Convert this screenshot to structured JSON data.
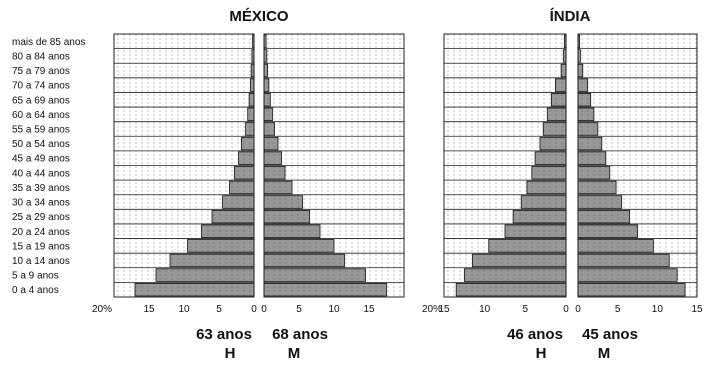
{
  "chart_data": [
    {
      "type": "bar",
      "title": "MÉXICO",
      "orientation": "horizontal-population-pyramid",
      "categories": [
        "0 a 4 anos",
        "5 a 9 anos",
        "10 a 14 anos",
        "15 a 19 anos",
        "20 a 24 anos",
        "25 a 29 anos",
        "30 a 34 anos",
        "35 a 39 anos",
        "40 a 44 anos",
        "45 a 49 anos",
        "50 a 54 anos",
        "55 a 59 anos",
        "60 a 64 anos",
        "65 a 69 anos",
        "70 a 74 anos",
        "75 a 79 anos",
        "80 a 84 anos",
        "mais de 85 anos"
      ],
      "series": [
        {
          "values": [
            17,
            14,
            12,
            9.5,
            7.5,
            6,
            4.5,
            3.5,
            2.8,
            2.2,
            1.8,
            1.2,
            0.9,
            0.7,
            0.5,
            0.4,
            0.3,
            0.2
          ]
        },
        {
          "values": [
            17.5,
            14.5,
            11.5,
            10,
            8,
            6.5,
            5.5,
            4,
            3,
            2.5,
            2,
            1.5,
            1.2,
            0.9,
            0.7,
            0.5,
            0.4,
            0.3
          ]
        }
      ],
      "xlim": [
        0,
        20
      ],
      "left_ticks": [
        "20%",
        "15",
        "10",
        "5",
        "0"
      ],
      "right_ticks": [
        "0",
        "5",
        "10",
        "15"
      ],
      "left_caption": {
        "value": "63 anos",
        "sex": "H"
      },
      "right_caption": {
        "value": "68 anos",
        "sex": "M"
      },
      "grid": true
    },
    {
      "type": "bar",
      "title": "ÍNDIA",
      "orientation": "horizontal-population-pyramid",
      "categories": [
        "0 a 4 anos",
        "5 a 9 anos",
        "10 a 14 anos",
        "15 a 19 anos",
        "20 a 24 anos",
        "25 a 29 anos",
        "30 a 34 anos",
        "35 a 39 anos",
        "40 a 44 anos",
        "45 a 49 anos",
        "50 a 54 anos",
        "55 a 59 anos",
        "60 a 64 anos",
        "65 a 69 anos",
        "70 a 74 anos",
        "75 a 79 anos",
        "80 a 84 anos",
        "mais de 85 anos"
      ],
      "series": [
        {
          "values": [
            13.5,
            12.5,
            11.5,
            9.5,
            7.5,
            6.5,
            5.5,
            4.8,
            4.2,
            3.8,
            3.2,
            2.8,
            2.3,
            1.8,
            1.3,
            0.6,
            0.3,
            0.2
          ]
        },
        {
          "values": [
            13.5,
            12.5,
            11.5,
            9.5,
            7.5,
            6.5,
            5.5,
            4.8,
            4,
            3.5,
            3,
            2.5,
            2,
            1.6,
            1.2,
            0.6,
            0.3,
            0.2
          ]
        }
      ],
      "xlim": [
        0,
        15
      ],
      "left_ticks": [
        "20%",
        "15",
        "10",
        "5",
        "0"
      ],
      "right_ticks": [
        "0",
        "5",
        "10",
        "15"
      ],
      "left_caption": {
        "value": "46 anos",
        "sex": "H"
      },
      "right_caption": {
        "value": "45 anos",
        "sex": "M"
      },
      "grid": true
    }
  ]
}
